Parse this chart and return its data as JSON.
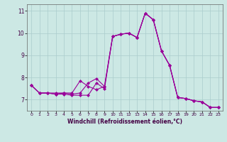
{
  "title": "",
  "xlabel": "Windchill (Refroidissement éolien,°C)",
  "ylabel": "",
  "bg_color": "#cce8e4",
  "line_color": "#990099",
  "grid_color": "#aacccc",
  "axis_color": "#666666",
  "xlim": [
    -0.5,
    23.5
  ],
  "ylim": [
    6.5,
    11.3
  ],
  "yticks": [
    7,
    8,
    9,
    10,
    11
  ],
  "xticks": [
    0,
    1,
    2,
    3,
    4,
    5,
    6,
    7,
    8,
    9,
    10,
    11,
    12,
    13,
    14,
    15,
    16,
    17,
    18,
    19,
    20,
    21,
    22,
    23
  ],
  "series": [
    [
      7.65,
      7.3,
      7.3,
      7.25,
      7.25,
      7.2,
      7.2,
      7.2,
      7.75,
      7.5,
      9.85,
      9.95,
      10.0,
      9.8,
      10.9,
      10.6,
      9.2,
      8.55,
      7.1,
      7.05,
      6.95,
      6.9,
      6.65,
      6.65
    ],
    [
      7.65,
      7.3,
      7.3,
      7.25,
      7.3,
      7.25,
      7.3,
      7.75,
      7.95,
      7.6,
      9.85,
      9.95,
      10.0,
      9.8,
      10.9,
      10.6,
      9.2,
      8.55,
      7.1,
      7.05,
      6.95,
      6.9,
      6.65,
      6.65
    ],
    [
      7.65,
      7.3,
      7.3,
      7.3,
      7.3,
      7.3,
      7.85,
      7.6,
      7.45,
      7.6,
      9.85,
      9.95,
      10.0,
      9.8,
      10.9,
      10.6,
      9.2,
      8.55,
      7.1,
      7.05,
      6.95,
      6.9,
      6.65,
      6.65
    ]
  ]
}
